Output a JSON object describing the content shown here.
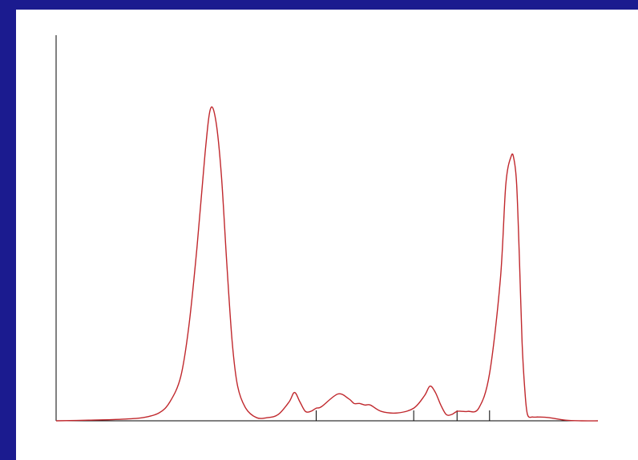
{
  "slide": {
    "background": "#1b1b8f",
    "panel_background": "#ffffff"
  },
  "chart_data": {
    "type": "line",
    "title": "",
    "xlabel": "",
    "ylabel": "",
    "grid": false,
    "axis_color": "#000000",
    "line_color": "#c0282d",
    "xlim": [
      0,
      100
    ],
    "ylim": [
      0,
      100
    ],
    "series": [
      {
        "x": [
          0,
          6,
          12,
          16,
          19,
          21,
          23,
          24.5,
          26,
          27.5,
          28.5,
          29.5,
          30.5,
          31.5,
          32.5,
          33.5,
          35,
          37,
          39,
          41,
          43,
          44,
          45,
          46,
          47,
          48,
          49,
          52,
          54,
          55,
          56,
          57,
          58,
          60,
          63,
          66,
          68,
          69,
          70,
          71,
          72,
          73,
          74,
          75,
          76,
          78,
          80,
          82,
          83,
          84,
          84.5,
          85,
          85.5,
          86,
          86.5,
          87,
          88,
          89,
          91,
          94,
          97,
          100
        ],
        "y": [
          0,
          0.2,
          0.5,
          1,
          2.5,
          6,
          14,
          30,
          55,
          85,
          99,
          95,
          78,
          50,
          25,
          11,
          4,
          1,
          1,
          2,
          6,
          9,
          6,
          3,
          3,
          4,
          4.5,
          8.5,
          7,
          5.5,
          5.5,
          5,
          5,
          3,
          2.5,
          4,
          8,
          11,
          9,
          5,
          2,
          2,
          3,
          3,
          3,
          4,
          15,
          45,
          75,
          84,
          83,
          75,
          52,
          25,
          10,
          2,
          1.2,
          1.2,
          1,
          0.2,
          0,
          0
        ]
      }
    ],
    "markers_x": [
      48,
      66,
      74,
      80
    ]
  }
}
